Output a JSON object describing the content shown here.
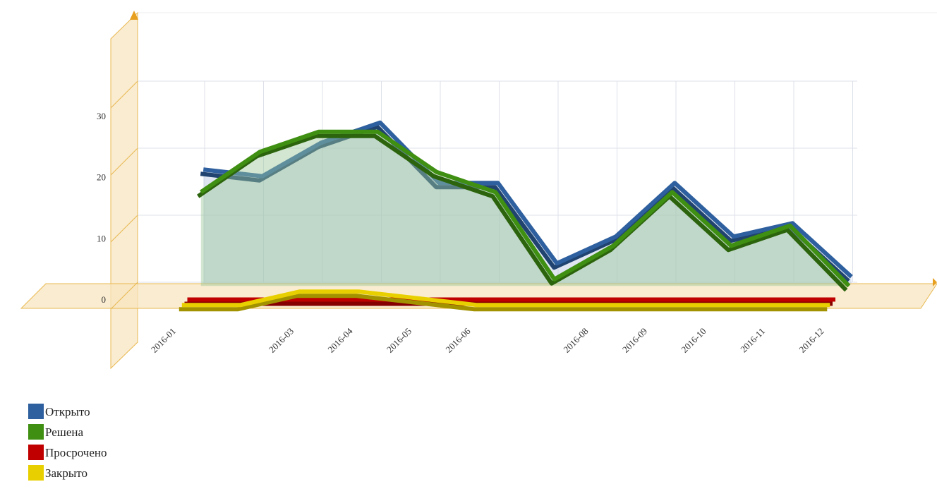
{
  "chart_data": {
    "type": "line3d",
    "categories": [
      "2016-01",
      null,
      "2016-03",
      "2016-04",
      "2016-05",
      "2016-06",
      null,
      "2016-08",
      "2016-09",
      "2016-10",
      "2016-11",
      "2016-12"
    ],
    "series": [
      {
        "name": "Открыто",
        "color": "#2e5f9e",
        "values": [
          17,
          16,
          21,
          24,
          15,
          15,
          3,
          7,
          15,
          7,
          9,
          1
        ]
      },
      {
        "name": "Решена",
        "color": "#3f8f12",
        "values": [
          14,
          20,
          23,
          23,
          17,
          14,
          1,
          6,
          14,
          6,
          9,
          0
        ]
      },
      {
        "name": "Просрочено",
        "color": "#c00000",
        "values": [
          0,
          0,
          0,
          0,
          0,
          0,
          0,
          0,
          0,
          0,
          0,
          0
        ]
      },
      {
        "name": "Закрыто",
        "color": "#e8d000",
        "values": [
          0,
          0,
          2,
          2,
          1,
          0,
          0,
          0,
          0,
          0,
          0,
          0
        ]
      }
    ],
    "ylim": [
      0,
      30
    ],
    "yticks": [
      0,
      10,
      20,
      30
    ],
    "grid": true
  }
}
